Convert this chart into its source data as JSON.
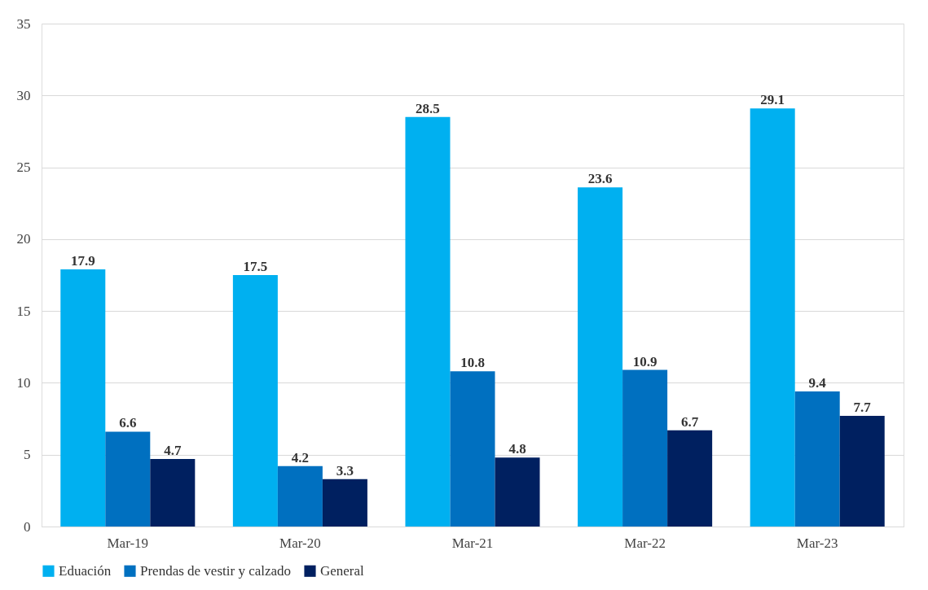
{
  "chart_data": {
    "type": "bar",
    "categories": [
      "Mar-19",
      "Mar-20",
      "Mar-21",
      "Mar-22",
      "Mar-23"
    ],
    "series": [
      {
        "name": "Eduación",
        "color": "#00b0f0",
        "values": [
          17.9,
          17.5,
          28.5,
          23.6,
          29.1
        ]
      },
      {
        "name": "Prendas de vestir y calzado",
        "color": "#0070c0",
        "values": [
          6.6,
          4.2,
          10.8,
          10.9,
          9.4
        ]
      },
      {
        "name": "General",
        "color": "#002060",
        "values": [
          4.7,
          3.3,
          4.8,
          6.7,
          7.7
        ]
      }
    ],
    "ylim": [
      0,
      35
    ],
    "yticks": [
      0,
      5,
      10,
      15,
      20,
      25,
      30,
      35
    ],
    "grid": "y",
    "legend": "bottom",
    "data_labels": true
  }
}
